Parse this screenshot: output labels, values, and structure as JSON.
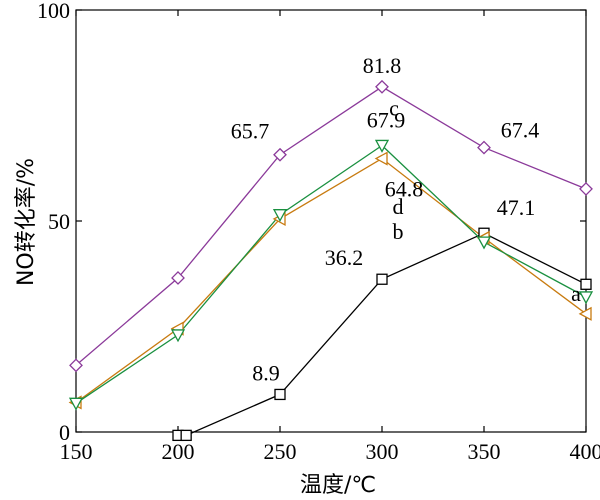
{
  "chart_data": {
    "type": "line",
    "title": "",
    "xlabel": "温度/℃",
    "ylabel": "NO转化率/%",
    "xlim": [
      150,
      400
    ],
    "ylim": [
      0,
      100
    ],
    "xticks": [
      150,
      200,
      250,
      300,
      350,
      400
    ],
    "yticks": [
      0,
      50,
      100
    ],
    "grid": false,
    "x": [
      150,
      200,
      250,
      300,
      350,
      400
    ],
    "series": [
      {
        "name": "a",
        "color": "#000000",
        "marker": "square",
        "points": [
          [
            200,
            -0.8
          ],
          [
            204,
            -0.8
          ],
          [
            250,
            8.9
          ],
          [
            300,
            36.2
          ],
          [
            350,
            47.1
          ],
          [
            400,
            35.0
          ]
        ]
      },
      {
        "name": "b",
        "color": "#c87b10",
        "marker": "triangle-left",
        "points": [
          [
            150,
            7.0
          ],
          [
            200,
            24.5
          ],
          [
            250,
            50.5
          ],
          [
            300,
            64.8
          ],
          [
            350,
            46.0
          ],
          [
            400,
            28.0
          ]
        ]
      },
      {
        "name": "c",
        "color": "#8b3a9a",
        "marker": "diamond",
        "points": [
          [
            150,
            15.8
          ],
          [
            200,
            36.5
          ],
          [
            250,
            65.7
          ],
          [
            300,
            81.8
          ],
          [
            350,
            67.4
          ],
          [
            400,
            57.6
          ]
        ]
      },
      {
        "name": "d",
        "color": "#1a9040",
        "marker": "triangle-down",
        "points": [
          [
            150,
            6.8
          ],
          [
            200,
            23.0
          ],
          [
            250,
            51.5
          ],
          [
            300,
            67.9
          ],
          [
            350,
            45.0
          ],
          [
            400,
            32.0
          ]
        ]
      }
    ],
    "annotations": [
      {
        "text": "81.8",
        "x": 300,
        "y": 81.8
      },
      {
        "text": "65.7",
        "x": 250,
        "y": 65.7
      },
      {
        "text": "67.9",
        "x": 300,
        "y": 67.9
      },
      {
        "text": "67.4",
        "x": 350,
        "y": 67.4
      },
      {
        "text": "64.8",
        "x": 300,
        "y": 64.8
      },
      {
        "text": "47.1",
        "x": 350,
        "y": 47.1
      },
      {
        "text": "36.2",
        "x": 300,
        "y": 36.2
      },
      {
        "text": "8.9",
        "x": 250,
        "y": 8.9
      },
      {
        "text": "a",
        "x": 350,
        "y": 40.0
      },
      {
        "text": "b",
        "x": 350,
        "y": 50.0
      },
      {
        "text": "c",
        "x": 350,
        "y": 75.0
      },
      {
        "text": "d",
        "x": 350,
        "y": 55.0
      }
    ]
  }
}
